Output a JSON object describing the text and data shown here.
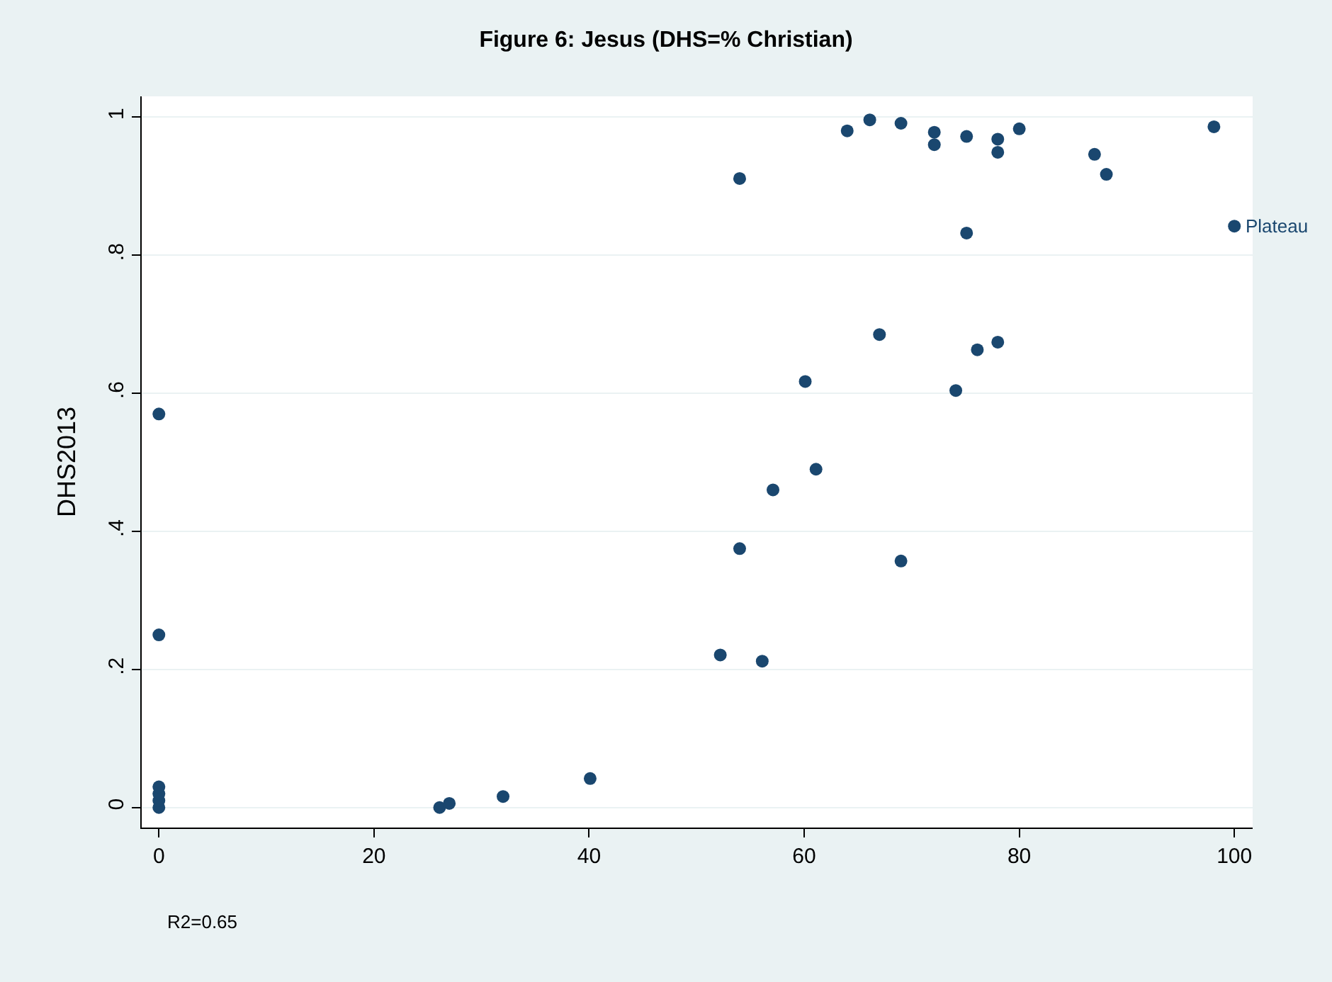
{
  "chart_data": {
    "type": "scatter",
    "title": "Figure 6: Jesus (DHS=% Christian)",
    "ylabel": "DHS2013",
    "x": [
      0,
      0,
      0,
      0,
      0,
      0,
      26.1,
      27,
      32,
      40.1,
      52.2,
      56.1,
      54,
      69,
      57.1,
      61.1,
      60.1,
      74.1,
      67,
      76.1,
      78,
      75.1,
      100,
      54,
      64,
      66.1,
      69,
      72.1,
      72.1,
      75.1,
      78,
      78,
      80,
      87,
      88.1,
      98.1
    ],
    "values": [
      0.57,
      0.25,
      0,
      0.01,
      0.02,
      0.03,
      0.0,
      0.006,
      0.016,
      0.042,
      0.221,
      0.212,
      0.375,
      0.357,
      0.46,
      0.49,
      0.617,
      0.604,
      0.685,
      0.663,
      0.674,
      0.832,
      0.842,
      0.911,
      0.98,
      0.996,
      0.991,
      0.978,
      0.96,
      0.972,
      0.968,
      0.949,
      0.983,
      0.946,
      0.917,
      0.986
    ],
    "color": "#1a476f",
    "marker": "circle",
    "grid": "y",
    "xlim": [
      -1.6,
      101.7
    ],
    "ylim": [
      -0.029,
      1.03
    ],
    "xticks": [
      0,
      20,
      40,
      60,
      80,
      100
    ],
    "yticks": [
      {
        "value": 0,
        "label": "0"
      },
      {
        "value": 0.2,
        "label": ".2"
      },
      {
        "value": 0.4,
        "label": ".4"
      },
      {
        "value": 0.6,
        "label": ".6"
      },
      {
        "value": 0.8,
        "label": ".8"
      },
      {
        "value": 1,
        "label": "1"
      }
    ],
    "annotations": [
      {
        "text": "Plateau",
        "x": 100,
        "y": 0.842
      },
      "R2=0.65"
    ]
  }
}
